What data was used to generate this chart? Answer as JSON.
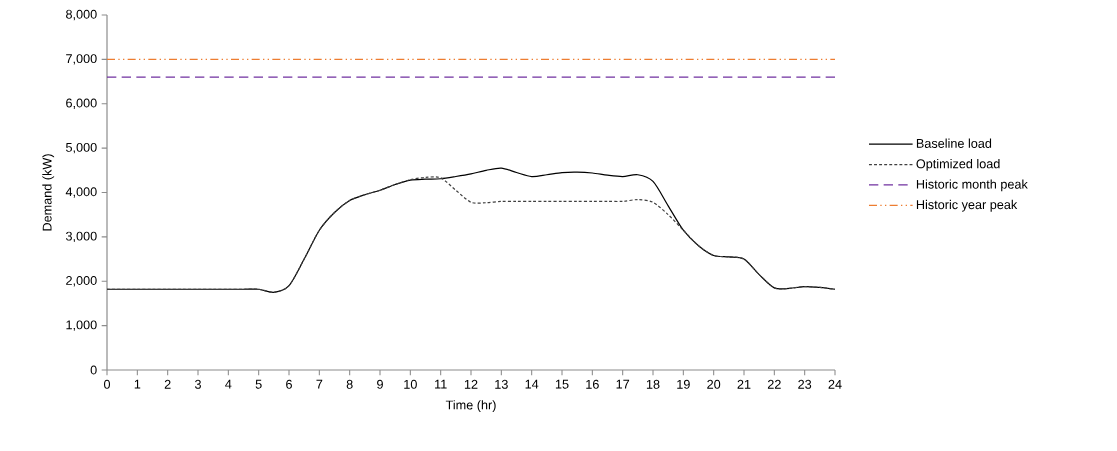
{
  "chart_data": {
    "type": "line",
    "xlabel": "Time (hr)",
    "ylabel": "Demand (kW)",
    "xlim": [
      0,
      24
    ],
    "xticks": [
      0,
      1,
      2,
      3,
      4,
      5,
      6,
      7,
      8,
      9,
      10,
      11,
      12,
      13,
      14,
      15,
      16,
      17,
      18,
      19,
      20,
      21,
      22,
      23,
      24
    ],
    "ylim": [
      0,
      8000
    ],
    "yticks": [
      0,
      {
        "value": 1000,
        "label": "1,000"
      },
      {
        "value": 2000,
        "label": "2,000"
      },
      {
        "value": 3000,
        "label": "3,000"
      },
      {
        "value": 4000,
        "label": "4,000"
      },
      {
        "value": 5000,
        "label": "5,000"
      },
      {
        "value": 6000,
        "label": "6,000"
      },
      {
        "value": 7000,
        "label": "7,000"
      },
      {
        "value": 8000,
        "label": "8,000"
      }
    ],
    "x": [
      0,
      0.5,
      1,
      1.5,
      2,
      2.5,
      3,
      3.5,
      4,
      4.5,
      5,
      5.5,
      6,
      6.5,
      7,
      7.5,
      8,
      8.5,
      9,
      9.5,
      10,
      10.5,
      11,
      11.5,
      12,
      12.5,
      13,
      13.5,
      14,
      14.5,
      15,
      15.5,
      16,
      16.5,
      17,
      17.5,
      18,
      18.5,
      19,
      19.5,
      20,
      20.5,
      21,
      21.5,
      22,
      22.5,
      23,
      23.5,
      24
    ],
    "series": [
      {
        "name": "Baseline load",
        "color": "#000000",
        "line_style": "solid",
        "values": [
          1820,
          1820,
          1820,
          1820,
          1820,
          1820,
          1820,
          1820,
          1820,
          1820,
          1820,
          1750,
          1900,
          2500,
          3150,
          3550,
          3820,
          3950,
          4050,
          4180,
          4280,
          4300,
          4310,
          4360,
          4420,
          4500,
          4550,
          4450,
          4360,
          4400,
          4450,
          4460,
          4440,
          4390,
          4360,
          4400,
          4250,
          3700,
          3150,
          2800,
          2580,
          2550,
          2500,
          2150,
          1850,
          1840,
          1880,
          1860,
          1820
        ]
      },
      {
        "name": "Optimized load",
        "color": "#404040",
        "line_style": "dashed",
        "values": [
          1820,
          1820,
          1820,
          1820,
          1820,
          1820,
          1820,
          1820,
          1820,
          1820,
          1820,
          1750,
          1900,
          2500,
          3150,
          3550,
          3820,
          3950,
          4050,
          4180,
          4290,
          4340,
          4330,
          4050,
          3780,
          3770,
          3800,
          3800,
          3800,
          3800,
          3800,
          3800,
          3800,
          3800,
          3800,
          3840,
          3780,
          3500,
          3150,
          2800,
          2580,
          2550,
          2500,
          2150,
          1850,
          1840,
          1880,
          1860,
          1820
        ]
      }
    ],
    "ref_lines": [
      {
        "axis": "y",
        "value": 6600,
        "label": "Historic month peak",
        "color": "#7030a0",
        "line_style": "dashed"
      },
      {
        "axis": "y",
        "value": 7000,
        "label": "Historic year peak",
        "color": "#ed7d31",
        "line_style": "dashdot"
      }
    ],
    "legend": "right",
    "grid": false,
    "marker": "none"
  }
}
